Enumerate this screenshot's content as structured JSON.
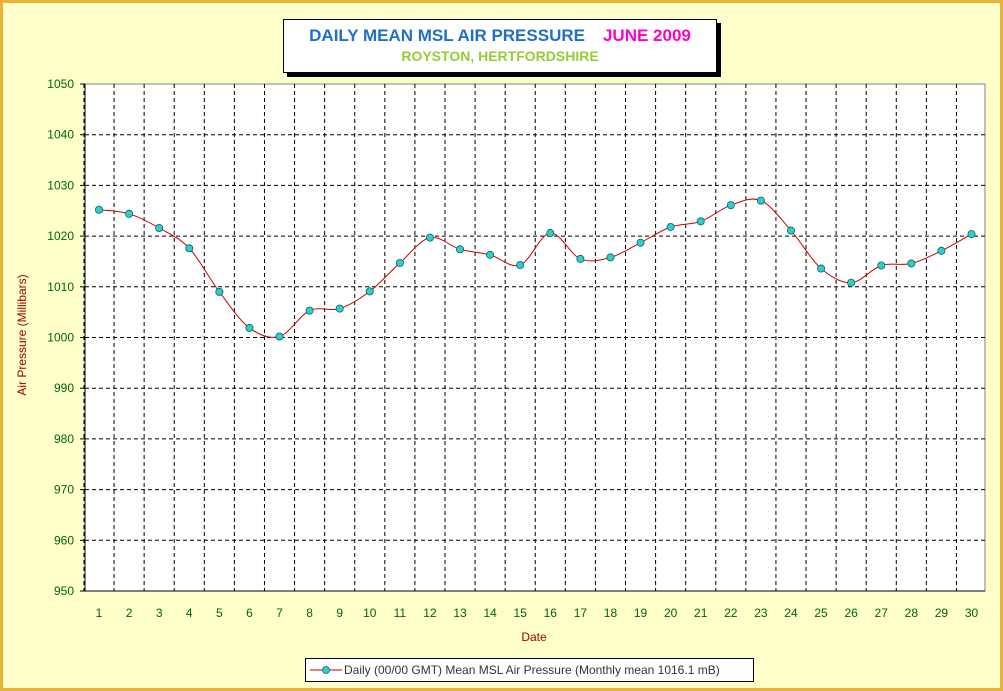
{
  "title": {
    "main": "DAILY MEAN MSL AIR PRESSURE",
    "month": "JUNE 2009",
    "subtitle": "ROYSTON, HERTFORDSHIRE"
  },
  "colors": {
    "frame_border": "#E8B43A",
    "background": "#FFFFCC",
    "title_main": "#1F6FC8",
    "title_month": "#FF00CC",
    "subtitle": "#99CC33",
    "line": "#CC0000",
    "marker": "#33CCCC",
    "tick_labels": "#006600",
    "axis_titles": "#990000"
  },
  "legend": {
    "label": "Daily (00/00 GMT) Mean MSL Air Pressure (Monthly mean 1016.1 mB)"
  },
  "chart_data": {
    "type": "line",
    "title": "DAILY MEAN MSL AIR PRESSURE",
    "xlabel": "Date",
    "ylabel": "Air Pressure (Millibars)",
    "ylim": [
      950,
      1050
    ],
    "ystep": 10,
    "xlim": [
      1,
      30
    ],
    "grid": true,
    "legend_position": "bottom",
    "x": [
      1,
      2,
      3,
      4,
      5,
      6,
      7,
      8,
      9,
      10,
      11,
      12,
      13,
      14,
      15,
      16,
      17,
      18,
      19,
      20,
      21,
      22,
      23,
      24,
      25,
      26,
      27,
      28,
      29,
      30
    ],
    "series": [
      {
        "name": "Daily (00/00 GMT) Mean MSL Air Pressure (Monthly mean 1016.1 mB)",
        "values": [
          1025.2,
          1024.4,
          1021.6,
          1017.6,
          1009.0,
          1001.9,
          1000.2,
          1005.3,
          1005.7,
          1009.1,
          1014.7,
          1019.7,
          1017.4,
          1016.3,
          1014.3,
          1020.6,
          1015.5,
          1015.8,
          1018.7,
          1021.8,
          1022.9,
          1026.1,
          1027.0,
          1021.1,
          1013.6,
          1010.8,
          1014.2,
          1014.6,
          1017.1,
          1020.4
        ]
      }
    ]
  }
}
